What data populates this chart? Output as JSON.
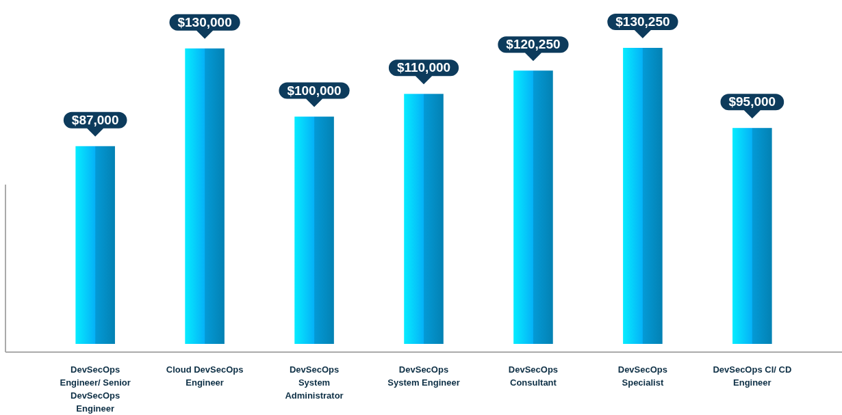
{
  "chart_data": {
    "type": "bar",
    "categories": [
      "DevSecOps Engineer/ Senior DevSecOps Engineer",
      "Cloud DevSecOps Engineer",
      "DevSecOps System Administrator",
      "DevSecOps System Engineer",
      "DevSecOps Consultant",
      "DevSecOps Specialist",
      "DevSecOps CI/ CD Engineer"
    ],
    "values": [
      87000,
      130000,
      100000,
      110000,
      120250,
      130250,
      95000
    ],
    "value_labels": [
      "$87,000",
      "$130,000",
      "$100,000",
      "$110,000",
      "$120,250",
      "$130,250",
      "$95,000"
    ],
    "color": "#049ad6"
  }
}
